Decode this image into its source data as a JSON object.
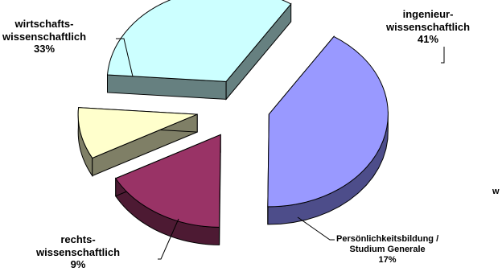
{
  "chart_data": {
    "type": "pie",
    "style": "3d-exploded",
    "slices": [
      {
        "label_lines": [
          "ingenieur-",
          "wissenschaftlich"
        ],
        "percent_label": "41%",
        "value": 41,
        "color": "#9999ff",
        "side_color": "#4d4d8a"
      },
      {
        "label_lines": [
          "Persönlichkeitsbildung /",
          "Studium Generale"
        ],
        "percent_label": "17%",
        "value": 17,
        "color": "#993366",
        "side_color": "#4d1a33"
      },
      {
        "label_lines": [
          "rechts-",
          "wissenschaftlich"
        ],
        "percent_label": "9%",
        "value": 9,
        "color": "#ffffcc",
        "side_color": "#7f7f66"
      },
      {
        "label_lines": [
          "wirtschafts-",
          "wissenschaftlich"
        ],
        "percent_label": "33%",
        "value": 33,
        "color": "#ccffff",
        "side_color": "#668080"
      }
    ],
    "partial_label": "w",
    "legend": "none"
  }
}
